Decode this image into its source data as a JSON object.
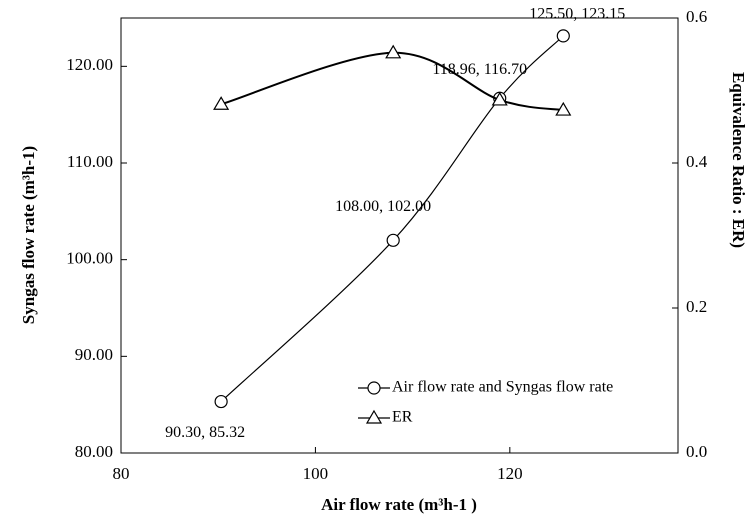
{
  "chart_data": {
    "type": "line",
    "xlabel": "Air  flow rate (m³h-1  )",
    "ylabel": "Syngas flow rate (m³h-1)",
    "y2label": "Equivalence Ratio : ER)",
    "x": [
      90.3,
      108.0,
      118.96,
      125.5
    ],
    "series": [
      {
        "name": "Air flow rate and Syngas flow rate",
        "color": "#000000",
        "marker": "circle",
        "values": [
          85.32,
          102.0,
          116.7,
          123.15
        ],
        "value_labels": [
          "90.30, 85.32",
          "108.00, 102.00",
          "118.96, 116.70",
          "125.50, 123.15"
        ]
      },
      {
        "name": "ER",
        "color": "#000000",
        "marker": "triangle",
        "axis": "y2",
        "values": [
          0.481,
          0.552,
          0.487,
          0.473
        ]
      }
    ],
    "xlim": [
      80,
      137.3
    ],
    "xticks": [
      80,
      100,
      120
    ],
    "ylim": [
      80,
      125
    ],
    "yticks": [
      {
        "value": 80,
        "label": "80.00"
      },
      {
        "value": 90,
        "label": "90.00"
      },
      {
        "value": 100,
        "label": "100.00"
      },
      {
        "value": 110,
        "label": "110.00"
      },
      {
        "value": 120,
        "label": "120.00"
      }
    ],
    "y2lim": [
      0,
      0.6
    ],
    "y2ticks": [
      {
        "value": 0,
        "label": "0.0"
      },
      {
        "value": 0.2,
        "label": "0.2"
      },
      {
        "value": 0.4,
        "label": "0.4"
      },
      {
        "value": 0.6,
        "label": "0.6"
      }
    ],
    "grid": false
  }
}
